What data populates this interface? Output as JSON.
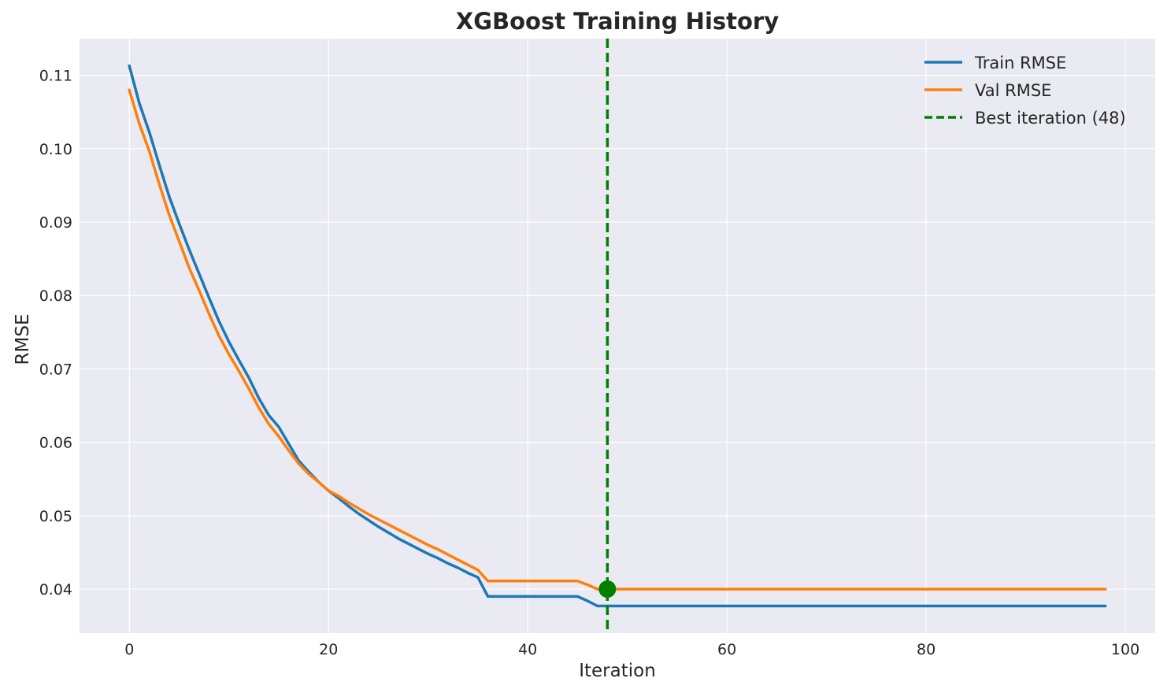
{
  "chart_data": {
    "type": "line",
    "title": "XGBoost Training History",
    "xlabel": "Iteration",
    "ylabel": "RMSE",
    "xlim": [
      -5,
      103
    ],
    "ylim": [
      0.034,
      0.115
    ],
    "xticks": [
      0,
      20,
      40,
      60,
      80,
      100
    ],
    "xtick_labels": [
      "0",
      "20",
      "40",
      "60",
      "80",
      "100"
    ],
    "yticks": [
      0.04,
      0.05,
      0.06,
      0.07,
      0.08,
      0.09,
      0.1,
      0.11
    ],
    "ytick_labels": [
      "0.04",
      "0.05",
      "0.06",
      "0.07",
      "0.08",
      "0.09",
      "0.10",
      "0.11"
    ],
    "grid": true,
    "legend_position": "top-right",
    "series": [
      {
        "name": "Train RMSE",
        "color": "#1f77b4",
        "x": [
          0,
          1,
          2,
          3,
          4,
          5,
          6,
          7,
          8,
          9,
          10,
          11,
          12,
          13,
          14,
          15,
          16,
          17,
          18,
          19,
          20,
          21,
          22,
          23,
          24,
          25,
          26,
          27,
          28,
          29,
          30,
          31,
          32,
          33,
          34,
          35,
          36,
          45,
          46,
          47,
          48,
          98
        ],
        "y": [
          0.1113,
          0.1062,
          0.1023,
          0.0978,
          0.0935,
          0.0898,
          0.0863,
          0.083,
          0.0797,
          0.0765,
          0.0737,
          0.0712,
          0.0688,
          0.066,
          0.0637,
          0.0621,
          0.0598,
          0.0575,
          0.056,
          0.0546,
          0.0534,
          0.0524,
          0.0513,
          0.0503,
          0.0494,
          0.0485,
          0.0477,
          0.0469,
          0.0462,
          0.0455,
          0.0448,
          0.0442,
          0.0435,
          0.0429,
          0.0422,
          0.0416,
          0.039,
          0.039,
          0.0384,
          0.0377,
          0.0377,
          0.0377
        ]
      },
      {
        "name": "Val RMSE",
        "color": "#ff7f0e",
        "x": [
          0,
          1,
          2,
          3,
          4,
          5,
          6,
          7,
          8,
          9,
          10,
          11,
          12,
          13,
          14,
          15,
          16,
          17,
          18,
          19,
          20,
          21,
          22,
          23,
          24,
          25,
          26,
          27,
          28,
          29,
          30,
          31,
          32,
          33,
          34,
          35,
          36,
          45,
          46,
          47,
          48,
          98
        ],
        "y": [
          0.108,
          0.1034,
          0.0997,
          0.0952,
          0.091,
          0.0874,
          0.0838,
          0.0807,
          0.0775,
          0.0745,
          0.072,
          0.0697,
          0.0673,
          0.0647,
          0.0625,
          0.0608,
          0.0589,
          0.0571,
          0.0557,
          0.0546,
          0.0534,
          0.0527,
          0.0518,
          0.051,
          0.0502,
          0.0495,
          0.0488,
          0.0481,
          0.0474,
          0.0467,
          0.046,
          0.0454,
          0.0447,
          0.044,
          0.0433,
          0.0426,
          0.0411,
          0.0411,
          0.0406,
          0.04,
          0.04,
          0.04
        ]
      }
    ],
    "best_iteration": {
      "label": "Best iteration (48)",
      "x": 48,
      "y": 0.04,
      "color": "#008000",
      "style": "dashed"
    }
  }
}
